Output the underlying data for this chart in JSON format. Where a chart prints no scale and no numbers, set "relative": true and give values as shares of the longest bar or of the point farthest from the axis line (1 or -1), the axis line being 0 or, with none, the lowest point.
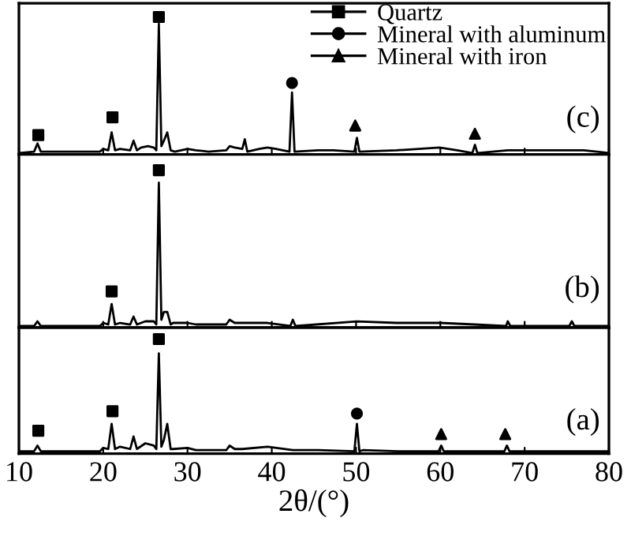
{
  "chart_data": [
    {
      "type": "line",
      "relative": true,
      "xlim": [
        10,
        80
      ],
      "xticks": [
        10,
        20,
        30,
        40,
        50,
        60,
        70,
        80
      ],
      "tick_labels": false,
      "legend": "top right",
      "annotations": [
        "(c)"
      ],
      "series": [
        {
          "type": "line",
          "color": "#000000",
          "x": [
            10,
            11.8,
            12.2,
            12.6,
            19.6,
            20,
            20.6,
            21,
            21.4,
            22,
            23.2,
            23.6,
            24,
            24.5,
            25.3,
            26,
            26.3,
            26.6,
            26.9,
            27.2,
            27.6,
            28,
            28.5,
            30,
            31,
            32.5,
            34.6,
            35,
            35.6,
            36.5,
            36.8,
            37.1,
            38.5,
            39.5,
            40.5,
            42.1,
            42.4,
            42.7,
            45.5,
            47.3,
            49.8,
            50.1,
            50.4,
            54.8,
            59.9,
            62,
            63.8,
            64.1,
            64.4,
            68,
            75.5,
            77,
            80
          ],
          "values": [
            0.01,
            0.02,
            0.08,
            0.02,
            0.02,
            0.04,
            0.03,
            0.16,
            0.03,
            0.04,
            0.03,
            0.1,
            0.03,
            0.05,
            0.06,
            0.05,
            0.03,
            0.95,
            0.06,
            0.1,
            0.16,
            0.03,
            0.02,
            0.04,
            0.03,
            0.02,
            0.03,
            0.06,
            0.05,
            0.04,
            0.11,
            0.02,
            0.04,
            0.05,
            0.04,
            0.02,
            0.45,
            0.02,
            0.03,
            0.03,
            0.02,
            0.12,
            0.02,
            0.03,
            0.05,
            0.03,
            0.01,
            0.07,
            0.01,
            0.03,
            0.03,
            0.03,
            0.01
          ]
        },
        {
          "type": "scatter",
          "name": "Quartz",
          "marker": "square",
          "color": "#000000",
          "x": [
            12.3,
            21.1,
            26.6
          ],
          "values": [
            0.14,
            0.27,
            1
          ]
        },
        {
          "type": "scatter",
          "name": "Mineral with aluminum",
          "marker": "circle",
          "color": "#000000",
          "x": [
            42.4
          ],
          "values": [
            0.52
          ]
        },
        {
          "type": "scatter",
          "name": "Mineral with iron",
          "marker": "triangle",
          "color": "#000000",
          "x": [
            49.9,
            64.1
          ],
          "values": [
            0.21,
            0.15
          ]
        }
      ]
    },
    {
      "type": "line",
      "relative": true,
      "xlim": [
        10,
        80
      ],
      "xticks": [
        10,
        20,
        30,
        40,
        50,
        60,
        70,
        80
      ],
      "tick_labels": false,
      "annotations": [
        "(b)"
      ],
      "series": [
        {
          "type": "line",
          "color": "#000000",
          "x": [
            10,
            11.8,
            12.2,
            12.6,
            19.6,
            20,
            20.6,
            21,
            21.4,
            22,
            23.2,
            23.6,
            24,
            25,
            26,
            26.3,
            26.6,
            26.9,
            27.2,
            27.6,
            28,
            28.3,
            30,
            31,
            34.6,
            35,
            35.6,
            36.5,
            39.5,
            42.2,
            42.5,
            42.8,
            50.1,
            54.8,
            60,
            64,
            67.8,
            68,
            68.3,
            75.3,
            75.6,
            75.9,
            80
          ],
          "values": [
            0.01,
            0.01,
            0.04,
            0.01,
            0.01,
            0.03,
            0.02,
            0.15,
            0.02,
            0.03,
            0.02,
            0.07,
            0.02,
            0.04,
            0.04,
            0.02,
            0.92,
            0.05,
            0.1,
            0.1,
            0.02,
            0.03,
            0.03,
            0.02,
            0.02,
            0.05,
            0.03,
            0.03,
            0.03,
            0.01,
            0.05,
            0.01,
            0.04,
            0.03,
            0.03,
            0.02,
            0.01,
            0.04,
            0.01,
            0.01,
            0.04,
            0.01,
            0.01
          ]
        },
        {
          "type": "scatter",
          "marker": "square",
          "color": "#000000",
          "x": [
            21.0,
            26.6
          ],
          "values": [
            0.23,
            1
          ]
        }
      ]
    },
    {
      "type": "line",
      "relative": true,
      "xlim": [
        10,
        80
      ],
      "xticks": [
        10,
        20,
        30,
        40,
        50,
        60,
        70,
        80
      ],
      "xlabel": "2θ/(°)",
      "annotations": [
        "(a)"
      ],
      "series": [
        {
          "type": "line",
          "color": "#000000",
          "x": [
            10,
            11.8,
            12.2,
            12.6,
            19.6,
            20,
            20.6,
            21,
            21.4,
            22,
            23.2,
            23.6,
            24,
            25,
            26,
            26.3,
            26.6,
            26.9,
            27.2,
            27.6,
            28,
            28.3,
            30,
            31,
            34.6,
            35,
            35.6,
            36.5,
            39.5,
            42.5,
            45.5,
            49.8,
            50.1,
            50.4,
            50.8,
            55,
            59.8,
            60.1,
            60.4,
            67.6,
            67.9,
            68.2,
            75,
            80
          ],
          "values": [
            0.02,
            0.02,
            0.07,
            0.02,
            0.02,
            0.05,
            0.04,
            0.26,
            0.04,
            0.06,
            0.04,
            0.15,
            0.04,
            0.09,
            0.07,
            0.04,
            0.875,
            0.06,
            0.12,
            0.26,
            0.04,
            0.04,
            0.05,
            0.03,
            0.03,
            0.07,
            0.04,
            0.04,
            0.06,
            0.03,
            0.03,
            0.02,
            0.26,
            0.02,
            0.03,
            0.02,
            0.02,
            0.07,
            0.02,
            0.02,
            0.07,
            0.02,
            0.02,
            0.02
          ]
        },
        {
          "type": "scatter",
          "marker": "square",
          "color": "#000000",
          "x": [
            12.3,
            21.1,
            26.6
          ],
          "values": [
            0.2,
            0.37,
            1
          ]
        },
        {
          "type": "scatter",
          "marker": "circle",
          "color": "#000000",
          "x": [
            50.1
          ],
          "values": [
            0.35
          ]
        },
        {
          "type": "scatter",
          "marker": "triangle",
          "color": "#000000",
          "x": [
            60.1,
            67.7
          ],
          "values": [
            0.17,
            0.17
          ]
        }
      ]
    }
  ]
}
